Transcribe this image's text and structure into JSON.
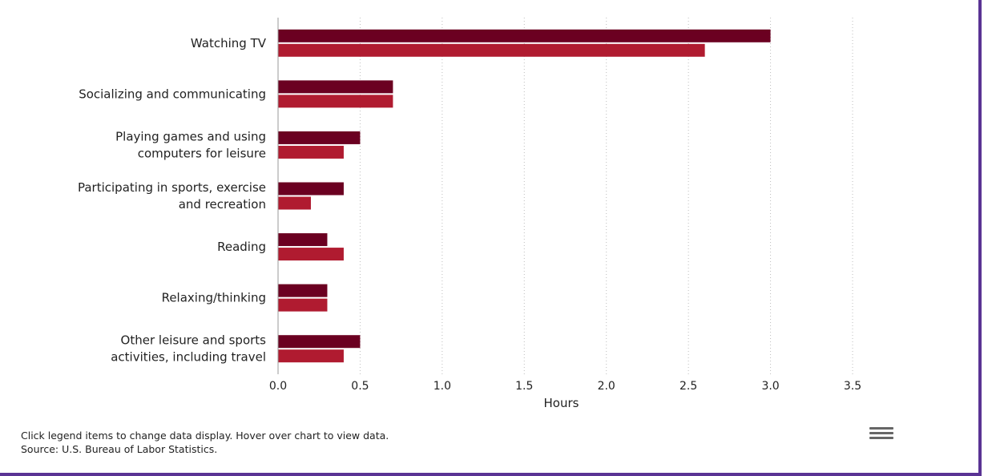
{
  "chart_data": {
    "type": "bar",
    "orientation": "horizontal",
    "xlabel": "Hours",
    "xlim": [
      0,
      3.5
    ],
    "xticks": [
      "0.0",
      "0.5",
      "1.0",
      "1.5",
      "2.0",
      "2.5",
      "3.0",
      "3.5"
    ],
    "grid": true,
    "categories": [
      [
        "Watching TV"
      ],
      [
        "Socializing and communicating"
      ],
      [
        "Playing games and using",
        "computers for leisure"
      ],
      [
        "Participating in sports, exercise",
        "and recreation"
      ],
      [
        "Reading"
      ],
      [
        "Relaxing/thinking"
      ],
      [
        "Other leisure and sports",
        "activities, including travel"
      ]
    ],
    "series": [
      {
        "color": "#6b0021",
        "values": [
          3.0,
          0.7,
          0.5,
          0.4,
          0.3,
          0.3,
          0.5
        ]
      },
      {
        "color": "#b01b30",
        "values": [
          2.6,
          0.7,
          0.4,
          0.2,
          0.4,
          0.3,
          0.4
        ]
      }
    ]
  },
  "footer": {
    "note": "Click legend items to change data display. Hover over chart to view data.",
    "source": "Source: U.S. Bureau of Labor Statistics."
  },
  "menu_icon": "hamburger-menu-icon"
}
